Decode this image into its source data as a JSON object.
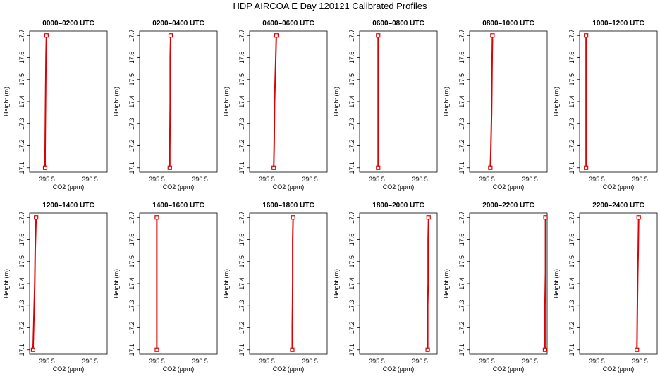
{
  "title": "HDP AIRCOA E  Day 120121  Calibrated Profiles",
  "colors": {
    "profile": "#dd0000",
    "axis": "#000000"
  },
  "chart_data": {
    "type": "line",
    "xlabel": "CO2 (ppm)",
    "ylabel": "Height (m)",
    "xlim": [
      395.1,
      396.9
    ],
    "ylim": [
      17.08,
      17.72
    ],
    "xticks": [
      395.5,
      396.5
    ],
    "xtick_labels": [
      "395.5",
      "396.5"
    ],
    "yticks": [
      17.1,
      17.2,
      17.3,
      17.4,
      17.5,
      17.6,
      17.7
    ],
    "ytick_labels": [
      "17.1",
      "17.2",
      "17.3",
      "17.4",
      "17.5",
      "17.6",
      "17.7"
    ],
    "panels": [
      {
        "title": "0000–0200 UTC",
        "x": [
          395.46,
          395.46,
          395.47,
          395.48,
          395.49
        ],
        "y": [
          17.1,
          17.18,
          17.4,
          17.6,
          17.7
        ]
      },
      {
        "title": "0200–0400 UTC",
        "x": [
          395.8,
          395.8,
          395.81,
          395.81,
          395.82
        ],
        "y": [
          17.1,
          17.18,
          17.4,
          17.6,
          17.7
        ]
      },
      {
        "title": "0400–0600 UTC",
        "x": [
          395.66,
          395.67,
          395.68,
          395.7,
          395.72
        ],
        "y": [
          17.1,
          17.2,
          17.4,
          17.55,
          17.7
        ]
      },
      {
        "title": "0600–0800 UTC",
        "x": [
          395.53,
          395.53,
          395.53,
          395.53,
          395.53
        ],
        "y": [
          17.1,
          17.25,
          17.4,
          17.6,
          17.7
        ]
      },
      {
        "title": "0800–1000 UTC",
        "x": [
          395.58,
          395.59,
          395.61,
          395.62,
          395.63
        ],
        "y": [
          17.1,
          17.15,
          17.35,
          17.55,
          17.7
        ]
      },
      {
        "title": "1000–1200 UTC",
        "x": [
          395.25,
          395.25,
          395.25,
          395.25,
          395.25
        ],
        "y": [
          17.1,
          17.3,
          17.4,
          17.6,
          17.7
        ]
      },
      {
        "title": "1200–1400 UTC",
        "x": [
          395.18,
          395.2,
          395.22,
          395.23,
          395.25
        ],
        "y": [
          17.1,
          17.25,
          17.4,
          17.55,
          17.7
        ]
      },
      {
        "title": "1400–1600 UTC",
        "x": [
          395.5,
          395.5,
          395.5,
          395.5,
          395.5
        ],
        "y": [
          17.1,
          17.3,
          17.4,
          17.6,
          17.7
        ]
      },
      {
        "title": "1600–1800 UTC",
        "x": [
          396.09,
          396.09,
          396.1,
          396.1,
          396.11
        ],
        "y": [
          17.1,
          17.2,
          17.4,
          17.6,
          17.7
        ]
      },
      {
        "title": "1800–2000 UTC",
        "x": [
          396.68,
          396.68,
          396.69,
          396.69,
          396.7
        ],
        "y": [
          17.1,
          17.3,
          17.4,
          17.6,
          17.7
        ]
      },
      {
        "title": "2000–2200 UTC",
        "x": [
          396.85,
          396.85,
          396.86,
          396.86,
          396.86
        ],
        "y": [
          17.1,
          17.3,
          17.45,
          17.6,
          17.7
        ]
      },
      {
        "title": "2200–2400 UTC",
        "x": [
          396.43,
          396.44,
          396.45,
          396.46,
          396.47
        ],
        "y": [
          17.1,
          17.3,
          17.45,
          17.55,
          17.7
        ]
      }
    ]
  }
}
